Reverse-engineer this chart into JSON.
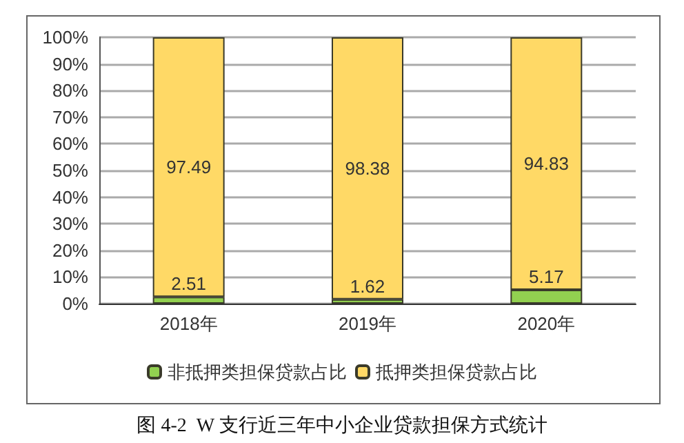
{
  "chart_data": {
    "type": "bar",
    "stacked": true,
    "categories": [
      "2018年",
      "2019年",
      "2020年"
    ],
    "series": [
      {
        "name": "非抵押类担保贷款占比",
        "color": "#92d050",
        "values": [
          2.51,
          1.62,
          5.17
        ]
      },
      {
        "name": "抵押类担保贷款占比",
        "color": "#ffd966",
        "values": [
          97.49,
          98.38,
          94.83
        ]
      }
    ],
    "ylim": [
      0,
      100
    ],
    "yticks": [
      {
        "value": 0,
        "label": "0%"
      },
      {
        "value": 10,
        "label": "10%"
      },
      {
        "value": 20,
        "label": "20%"
      },
      {
        "value": 30,
        "label": "30%"
      },
      {
        "value": 40,
        "label": "40%"
      },
      {
        "value": 50,
        "label": "50%"
      },
      {
        "value": 60,
        "label": "60%"
      },
      {
        "value": 70,
        "label": "70%"
      },
      {
        "value": 80,
        "label": "80%"
      },
      {
        "value": 90,
        "label": "90%"
      },
      {
        "value": 100,
        "label": "100%"
      }
    ],
    "grid": "y",
    "legend": "bottom",
    "data_labels": true,
    "annotations": [
      "图 4-2  W 支行近三年中小企业贷款担保方式统计"
    ]
  }
}
